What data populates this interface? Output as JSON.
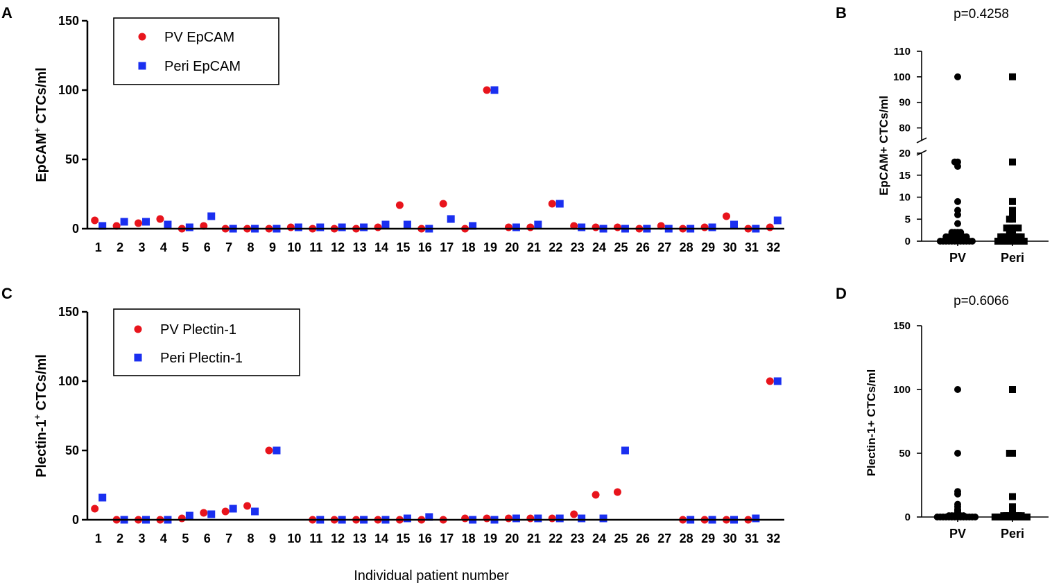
{
  "xlabel": "Individual patient number",
  "chart_data": [
    {
      "panel": "A",
      "type": "scatter",
      "ylabel": "EpCAM",
      "ylabel_sup": "+",
      "ylabel_rest": " CTCs/ml",
      "ylim": [
        0,
        150
      ],
      "yticks": [
        "0",
        "50",
        "100",
        "150"
      ],
      "categories": [
        "1",
        "2",
        "3",
        "4",
        "5",
        "6",
        "7",
        "8",
        "9",
        "10",
        "11",
        "12",
        "13",
        "14",
        "15",
        "16",
        "17",
        "18",
        "19",
        "20",
        "21",
        "22",
        "23",
        "24",
        "25",
        "26",
        "27",
        "28",
        "29",
        "30",
        "31",
        "32"
      ],
      "legend_position": "top-left",
      "series": [
        {
          "name": "PV EpCAM",
          "marker": "circle",
          "color": "#e8141c",
          "values": [
            6,
            2,
            4,
            7,
            0,
            2,
            0,
            0,
            0,
            1,
            0,
            0,
            0,
            1,
            17,
            0,
            18,
            0,
            100,
            1,
            1,
            18,
            2,
            1,
            1,
            0,
            2,
            0,
            1,
            9,
            0,
            1
          ]
        },
        {
          "name": "Peri EpCAM",
          "marker": "square",
          "color": "#1a2ff0",
          "values": [
            2,
            5,
            5,
            3,
            1,
            9,
            0,
            0,
            0,
            1,
            1,
            1,
            1,
            3,
            3,
            0,
            7,
            2,
            100,
            1,
            3,
            18,
            1,
            0,
            0,
            0,
            0,
            0,
            1,
            3,
            0,
            6
          ]
        }
      ]
    },
    {
      "panel": "B",
      "type": "scatter",
      "title": "p=0.4258",
      "ylabel": "EpCAM+ CTCs/ml",
      "broken_axis": true,
      "ylim_lower": [
        0,
        20
      ],
      "ylim_upper": [
        75,
        110
      ],
      "yticks_lower": [
        "0",
        "5",
        "10",
        "15",
        "20"
      ],
      "yticks_upper": [
        "80",
        "90",
        "100",
        "110"
      ],
      "categories": [
        "PV",
        "Peri"
      ],
      "series": [
        {
          "name": "PV",
          "marker": "circle",
          "color": "#000000",
          "values": [
            6,
            2,
            4,
            7,
            0,
            2,
            0,
            0,
            0,
            1,
            0,
            0,
            0,
            1,
            17,
            0,
            18,
            0,
            100,
            1,
            1,
            18,
            2,
            1,
            1,
            0,
            2,
            0,
            1,
            9,
            0,
            1
          ]
        },
        {
          "name": "Peri",
          "marker": "square",
          "color": "#000000",
          "values": [
            2,
            5,
            5,
            3,
            1,
            9,
            0,
            0,
            0,
            1,
            1,
            1,
            1,
            3,
            3,
            0,
            7,
            2,
            100,
            1,
            3,
            18,
            1,
            0,
            0,
            0,
            0,
            0,
            1,
            3,
            0,
            6
          ]
        }
      ]
    },
    {
      "panel": "C",
      "type": "scatter",
      "ylabel": "Plectin-1",
      "ylabel_sup": "+",
      "ylabel_rest": " CTCs/ml",
      "ylim": [
        0,
        150
      ],
      "yticks": [
        "0",
        "50",
        "100",
        "150"
      ],
      "categories": [
        "1",
        "2",
        "3",
        "4",
        "5",
        "6",
        "7",
        "8",
        "9",
        "10",
        "11",
        "12",
        "13",
        "14",
        "15",
        "16",
        "17",
        "18",
        "19",
        "20",
        "21",
        "22",
        "23",
        "24",
        "25",
        "26",
        "27",
        "28",
        "29",
        "30",
        "31",
        "32"
      ],
      "legend_position": "top-left",
      "series": [
        {
          "name": "PV Plectin-1",
          "marker": "circle",
          "color": "#e8141c",
          "values": [
            8,
            0,
            0,
            0,
            1,
            5,
            6,
            10,
            50,
            null,
            0,
            0,
            0,
            0,
            0,
            0,
            0,
            1,
            1,
            1,
            1,
            1,
            4,
            18,
            20,
            null,
            null,
            0,
            0,
            0,
            0,
            100
          ]
        },
        {
          "name": "Peri Plectin-1",
          "marker": "square",
          "color": "#1a2ff0",
          "values": [
            16,
            0,
            0,
            0,
            3,
            4,
            8,
            6,
            50,
            null,
            0,
            0,
            0,
            0,
            1,
            2,
            null,
            0,
            0,
            1,
            1,
            1,
            1,
            1,
            50,
            null,
            null,
            0,
            0,
            0,
            1,
            100
          ]
        }
      ]
    },
    {
      "panel": "D",
      "type": "scatter",
      "title": "p=0.6066",
      "ylabel": "Plectin-1+ CTCs/ml",
      "ylim": [
        0,
        150
      ],
      "yticks": [
        "0",
        "50",
        "100",
        "150"
      ],
      "categories": [
        "PV",
        "Peri"
      ],
      "series": [
        {
          "name": "PV",
          "marker": "circle",
          "color": "#000000",
          "values": [
            8,
            0,
            0,
            0,
            1,
            5,
            6,
            10,
            50,
            0,
            0,
            0,
            0,
            0,
            0,
            0,
            1,
            1,
            1,
            1,
            1,
            4,
            18,
            20,
            0,
            0,
            0,
            0,
            100
          ]
        },
        {
          "name": "Peri",
          "marker": "square",
          "color": "#000000",
          "values": [
            16,
            0,
            0,
            0,
            3,
            4,
            8,
            6,
            50,
            0,
            0,
            0,
            0,
            1,
            2,
            0,
            0,
            1,
            1,
            1,
            1,
            1,
            50,
            0,
            0,
            0,
            1,
            100
          ]
        }
      ]
    }
  ]
}
